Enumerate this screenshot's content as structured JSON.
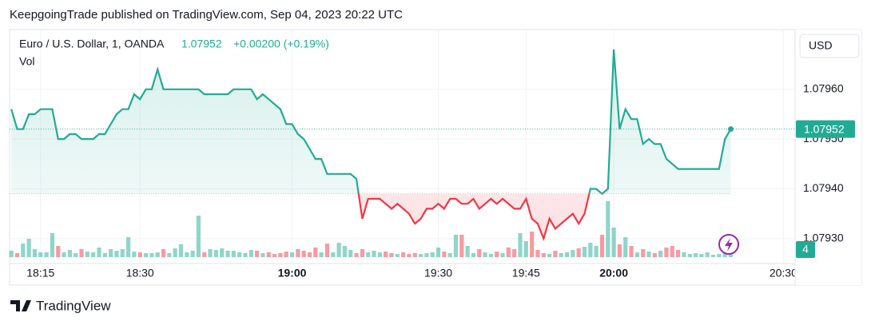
{
  "header": "KeepgoingTrade published on TradingView.com, Sep 04, 2023 20:22 UTC",
  "footer": "TradingView",
  "chart_data": {
    "type": "line",
    "title": "Euro / U.S. Dollar, 1, OANDA",
    "change": "+0.00200 (+0.19%)",
    "currency": "USD",
    "colors": {
      "up": "#22ab94",
      "down": "#f23645"
    },
    "baseline": 1.07939,
    "xlim": [
      -0.3,
      134
    ],
    "ylim": [
      1.07925,
      1.07972
    ],
    "xticks": [
      {
        "value": 5,
        "label": "18:15"
      },
      {
        "value": 22,
        "label": "18:30"
      },
      {
        "value": 48,
        "label": "19:00"
      },
      {
        "value": 73,
        "label": "19:30"
      },
      {
        "value": 88,
        "label": "19:45"
      },
      {
        "value": 103,
        "label": "20:00"
      },
      {
        "value": 132,
        "label": "20:30"
      }
    ],
    "yticks": [
      {
        "value": 1.0796,
        "label": "1.07960"
      },
      {
        "value": 1.0795,
        "label": "1.07950"
      },
      {
        "value": 1.0794,
        "label": "1.07940"
      },
      {
        "value": 1.0793,
        "label": "1.07930"
      }
    ],
    "values": [
      1.07956,
      1.07952,
      1.07952,
      1.07955,
      1.07955,
      1.07956,
      1.07956,
      1.07956,
      1.0795,
      1.0795,
      1.07951,
      1.07951,
      1.0795,
      1.0795,
      1.0795,
      1.07951,
      1.07951,
      1.07953,
      1.07955,
      1.07956,
      1.07956,
      1.07959,
      1.07958,
      1.0796,
      1.0796,
      1.07964,
      1.0796,
      1.0796,
      1.0796,
      1.0796,
      1.0796,
      1.0796,
      1.0796,
      1.07959,
      1.07959,
      1.07959,
      1.07959,
      1.07959,
      1.0796,
      1.0796,
      1.0796,
      1.0796,
      1.07958,
      1.07959,
      1.07958,
      1.07957,
      1.07956,
      1.07953,
      1.07953,
      1.07951,
      1.0795,
      1.07948,
      1.07946,
      1.07946,
      1.07943,
      1.07943,
      1.07943,
      1.07943,
      1.07943,
      1.07942,
      1.07934,
      1.07938,
      1.07938,
      1.07938,
      1.07937,
      1.07936,
      1.07937,
      1.07936,
      1.07935,
      1.07933,
      1.07934,
      1.07936,
      1.07936,
      1.07937,
      1.07936,
      1.07938,
      1.07938,
      1.07937,
      1.07937,
      1.07938,
      1.07936,
      1.07937,
      1.07938,
      1.07937,
      1.07938,
      1.07937,
      1.07936,
      1.07936,
      1.07938,
      1.07934,
      1.07933,
      1.0793,
      1.07934,
      1.07932,
      1.07933,
      1.07934,
      1.07935,
      1.07933,
      1.07935,
      1.0794,
      1.0794,
      1.07939,
      1.0794,
      1.07968,
      1.07952,
      1.07956,
      1.07954,
      1.07954,
      1.07949,
      1.0795,
      1.07949,
      1.07949,
      1.07946,
      1.07945,
      1.07944,
      1.07944,
      1.07944,
      1.07944,
      1.07944,
      1.07944,
      1.07944,
      1.07944,
      1.0795,
      1.07952
    ],
    "volume": {
      "name": "Vol",
      "values": [
        8,
        5,
        17,
        23,
        10,
        6,
        6,
        30,
        14,
        6,
        9,
        5,
        10,
        7,
        6,
        12,
        5,
        10,
        8,
        10,
        25,
        7,
        6,
        5,
        5,
        6,
        10,
        5,
        11,
        16,
        6,
        8,
        52,
        6,
        10,
        9,
        11,
        8,
        8,
        6,
        5,
        9,
        8,
        5,
        6,
        4,
        5,
        7,
        6,
        10,
        8,
        6,
        12,
        6,
        17,
        6,
        18,
        14,
        9,
        5,
        10,
        6,
        8,
        6,
        7,
        5,
        4,
        6,
        4,
        5,
        4,
        5,
        6,
        12,
        7,
        5,
        28,
        28,
        14,
        5,
        10,
        6,
        4,
        7,
        5,
        12,
        10,
        30,
        20,
        32,
        9,
        5,
        4,
        8,
        5,
        6,
        9,
        11,
        13,
        18,
        14,
        28,
        70,
        37,
        16,
        25,
        14,
        6,
        10,
        7,
        5,
        8,
        12,
        14,
        9,
        6,
        4,
        5,
        4,
        6,
        3,
        4,
        6,
        4
      ]
    }
  }
}
